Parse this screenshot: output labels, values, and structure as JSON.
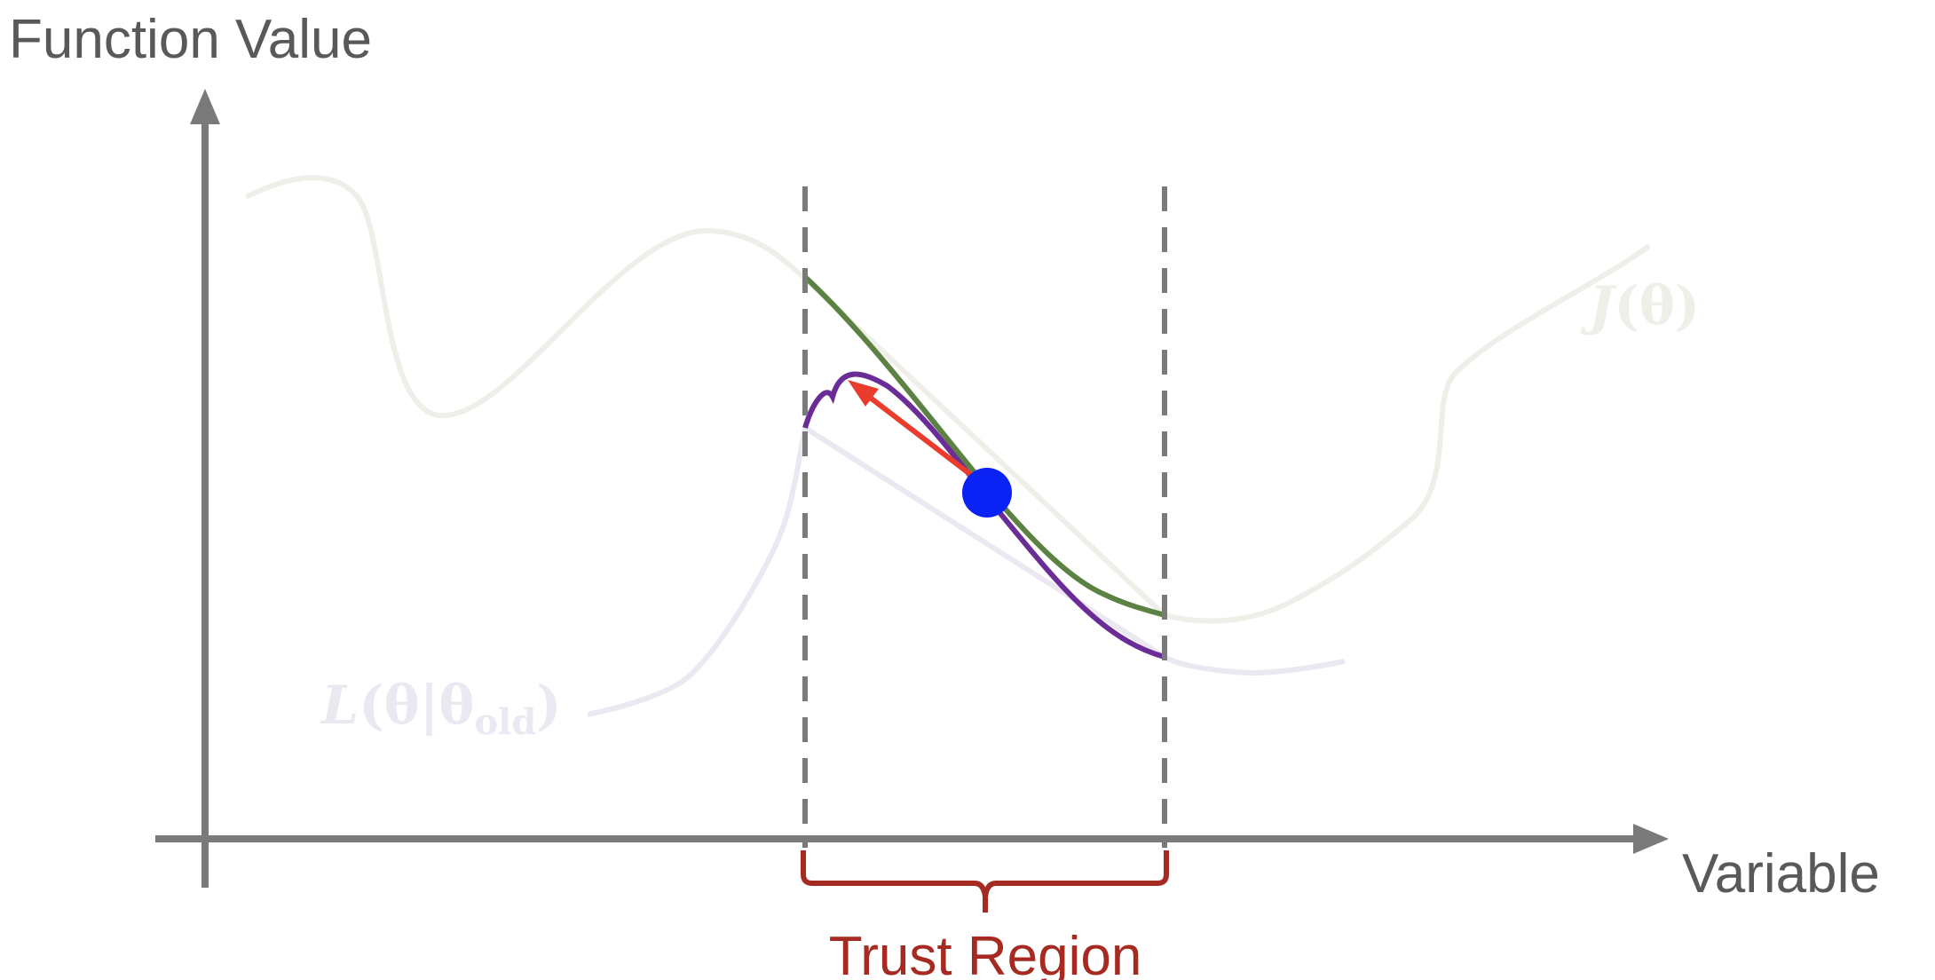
{
  "axes": {
    "y_label": "Function Value",
    "x_label": "Variable"
  },
  "curves": {
    "objective": {
      "label_main": "J",
      "label_arg": "(θ)",
      "color": "#eeefe9"
    },
    "surrogate": {
      "label_main": "L",
      "label_arg": "(θ|θ",
      "label_sub": "old",
      "label_close": ")",
      "color": "#ece8f2"
    },
    "objective_in_region_color": "#5b8242",
    "surrogate_in_region_color": "#6a2c96"
  },
  "trust_region": {
    "label": "Trust Region",
    "color": "#a52a22"
  },
  "current_point": {
    "color": "#0b22f5"
  },
  "step_arrow": {
    "color": "#ea3b2c"
  }
}
